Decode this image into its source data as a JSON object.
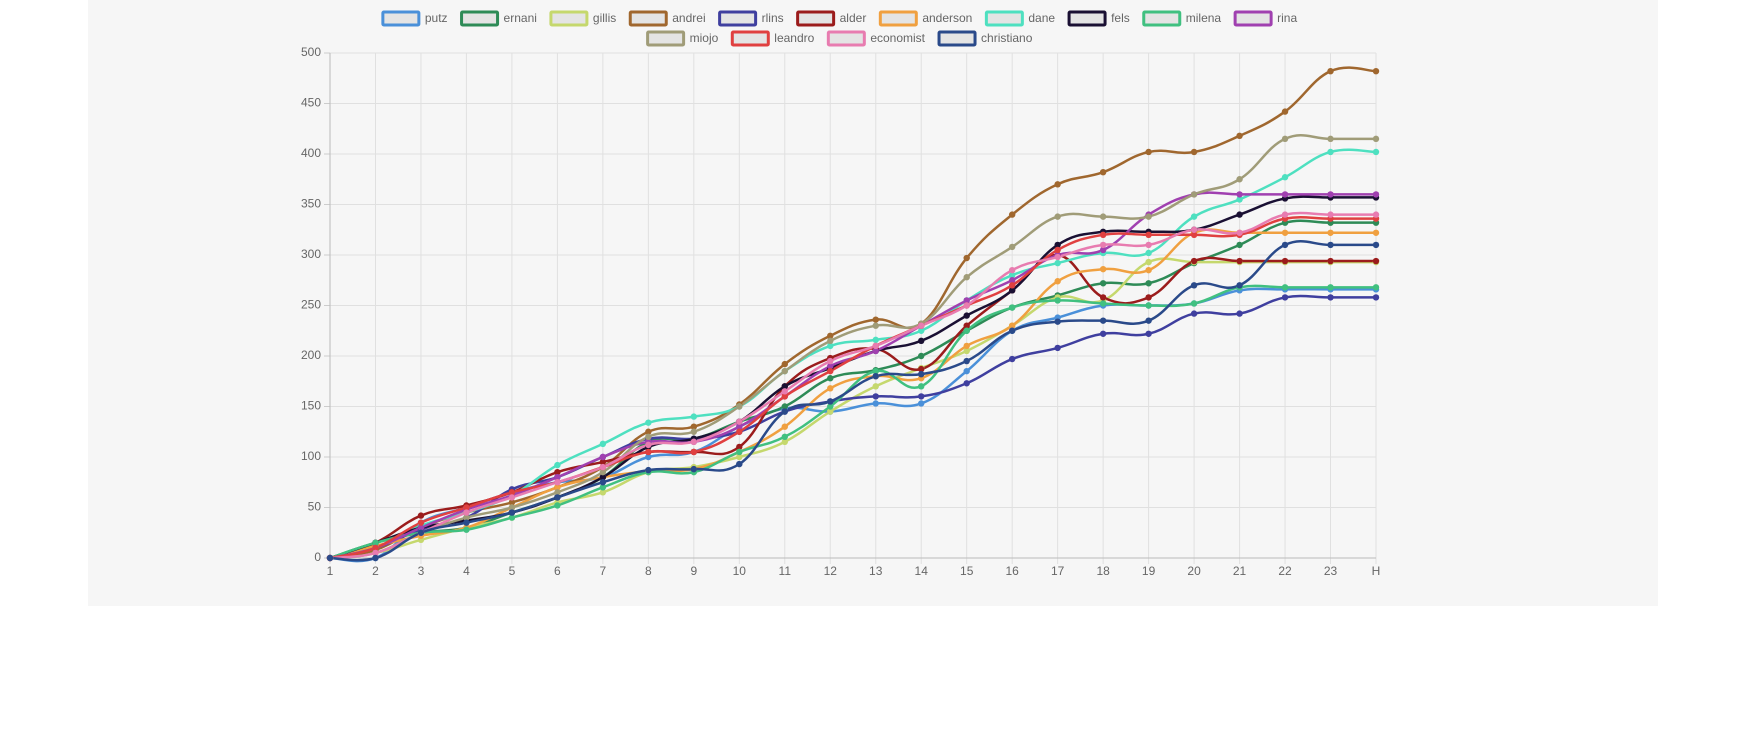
{
  "chart_data": {
    "type": "line",
    "categories": [
      "1",
      "2",
      "3",
      "4",
      "5",
      "6",
      "7",
      "8",
      "9",
      "10",
      "11",
      "12",
      "13",
      "14",
      "15",
      "16",
      "17",
      "18",
      "19",
      "20",
      "21",
      "22",
      "23",
      "H"
    ],
    "ylim": [
      0,
      500
    ],
    "yticks": [
      0,
      50,
      100,
      150,
      200,
      250,
      300,
      350,
      400,
      450,
      500
    ],
    "grid": true,
    "legend": "top",
    "series": [
      {
        "name": "putz",
        "color": "#4a90d9",
        "values": [
          0,
          0,
          35,
          50,
          65,
          75,
          80,
          100,
          105,
          130,
          148,
          145,
          153,
          153,
          185,
          225,
          238,
          250,
          250,
          252,
          265,
          266,
          266,
          266
        ]
      },
      {
        "name": "ernani",
        "color": "#2e8b57",
        "values": [
          0,
          15,
          25,
          30,
          45,
          60,
          80,
          115,
          118,
          135,
          150,
          178,
          186,
          200,
          225,
          248,
          260,
          272,
          272,
          292,
          310,
          332,
          332,
          332
        ]
      },
      {
        "name": "gillis",
        "color": "#c5d86d",
        "values": [
          0,
          5,
          18,
          30,
          40,
          55,
          65,
          85,
          90,
          100,
          115,
          145,
          170,
          188,
          205,
          230,
          258,
          255,
          293,
          293,
          293,
          293,
          293,
          293
        ]
      },
      {
        "name": "andrei",
        "color": "#a0672e",
        "values": [
          0,
          8,
          30,
          45,
          55,
          70,
          90,
          125,
          130,
          152,
          192,
          220,
          236,
          232,
          297,
          340,
          370,
          382,
          402,
          402,
          418,
          442,
          482,
          482
        ]
      },
      {
        "name": "rlins",
        "color": "#3f3f9f",
        "values": [
          0,
          10,
          28,
          40,
          68,
          80,
          100,
          118,
          118,
          125,
          145,
          155,
          160,
          160,
          173,
          197,
          208,
          222,
          222,
          242,
          242,
          258,
          258,
          258
        ]
      },
      {
        "name": "alder",
        "color": "#9b1c1c",
        "values": [
          0,
          15,
          42,
          52,
          65,
          85,
          95,
          105,
          105,
          110,
          170,
          198,
          207,
          187,
          230,
          265,
          300,
          258,
          258,
          294,
          294,
          294,
          294,
          294
        ]
      },
      {
        "name": "anderson",
        "color": "#f0a040",
        "values": [
          0,
          12,
          22,
          30,
          50,
          70,
          80,
          86,
          88,
          105,
          130,
          168,
          180,
          178,
          210,
          230,
          274,
          286,
          285,
          322,
          322,
          322,
          322,
          322
        ]
      },
      {
        "name": "dane",
        "color": "#4ee0c0",
        "values": [
          0,
          10,
          32,
          45,
          62,
          92,
          113,
          134,
          140,
          150,
          185,
          210,
          216,
          225,
          255,
          280,
          292,
          302,
          302,
          338,
          355,
          377,
          402,
          402
        ]
      },
      {
        "name": "fels",
        "color": "#1a1033",
        "values": [
          0,
          15,
          30,
          37,
          45,
          60,
          80,
          110,
          118,
          135,
          170,
          188,
          205,
          215,
          240,
          265,
          310,
          323,
          323,
          325,
          340,
          356,
          357,
          357
        ]
      },
      {
        "name": "milena",
        "color": "#40c080",
        "values": [
          0,
          15,
          25,
          28,
          40,
          52,
          70,
          85,
          85,
          105,
          120,
          150,
          185,
          170,
          225,
          248,
          255,
          252,
          250,
          252,
          268,
          268,
          268,
          268
        ]
      },
      {
        "name": "rina",
        "color": "#a040b0",
        "values": [
          0,
          10,
          30,
          48,
          62,
          80,
          100,
          115,
          115,
          130,
          160,
          190,
          205,
          230,
          255,
          275,
          300,
          305,
          340,
          360,
          360,
          360,
          360,
          360
        ]
      },
      {
        "name": "miojo",
        "color": "#a09c78",
        "values": [
          0,
          5,
          25,
          40,
          50,
          65,
          85,
          120,
          125,
          150,
          185,
          215,
          230,
          232,
          278,
          308,
          338,
          338,
          338,
          360,
          375,
          415,
          415,
          415
        ]
      },
      {
        "name": "leandro",
        "color": "#e04040",
        "values": [
          0,
          10,
          35,
          50,
          65,
          75,
          90,
          105,
          105,
          125,
          160,
          185,
          210,
          230,
          250,
          270,
          305,
          320,
          320,
          320,
          320,
          336,
          336,
          336
        ]
      },
      {
        "name": "economist",
        "color": "#e87cb0",
        "values": [
          0,
          5,
          25,
          45,
          60,
          75,
          90,
          112,
          115,
          135,
          165,
          195,
          210,
          230,
          250,
          285,
          298,
          310,
          310,
          325,
          322,
          340,
          340,
          340
        ]
      },
      {
        "name": "christiano",
        "color": "#2a4a8a",
        "values": [
          0,
          0,
          25,
          35,
          45,
          60,
          75,
          87,
          88,
          93,
          145,
          155,
          180,
          182,
          195,
          225,
          234,
          235,
          235,
          270,
          270,
          310,
          310,
          310
        ]
      }
    ]
  }
}
